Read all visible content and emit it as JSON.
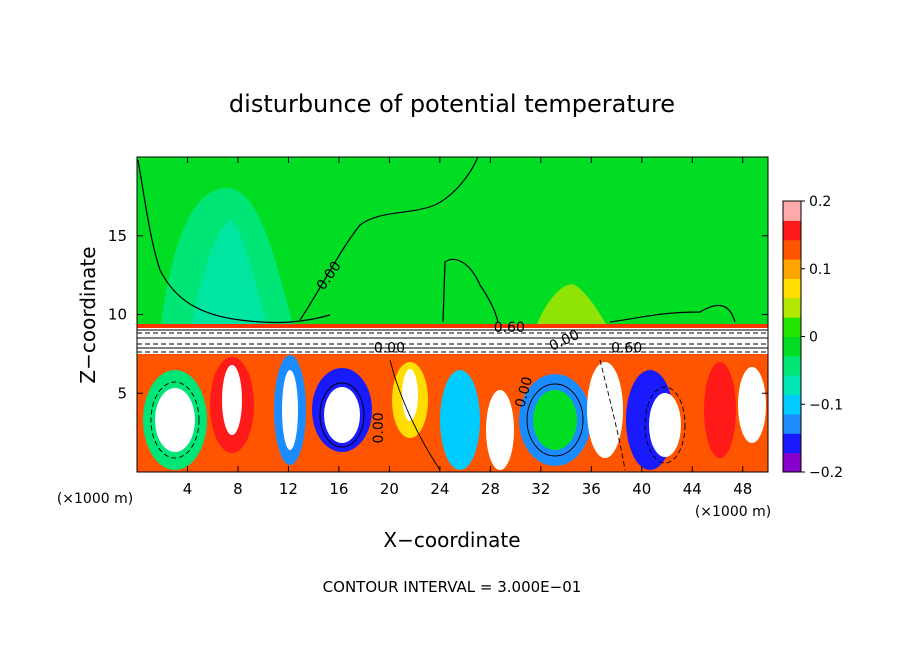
{
  "chart_data": {
    "type": "heatmap",
    "title": "disturbunce of potential temperature",
    "xlabel": "X−coordinate",
    "ylabel": "Z−coordinate",
    "x_unit": "(×1000 m)",
    "x_unit_right": "(×1000 m)",
    "footer": "CONTOUR INTERVAL = 3.000E−01",
    "xlim": [
      0,
      50
    ],
    "ylim": [
      0,
      20
    ],
    "x_ticks": [
      "4",
      "8",
      "12",
      "16",
      "20",
      "24",
      "28",
      "32",
      "36",
      "40",
      "44",
      "48"
    ],
    "x_tick_values": [
      4,
      8,
      12,
      16,
      20,
      24,
      28,
      32,
      36,
      40,
      44,
      48
    ],
    "y_ticks": [
      "5",
      "10",
      "15"
    ],
    "y_tick_values": [
      5,
      10,
      15
    ],
    "contour_labels": [
      {
        "text": "0.00",
        "x": 15.5,
        "z": 12.3,
        "angle": -55
      },
      {
        "text": "0.60",
        "x": 29.5,
        "z": 8.9,
        "angle": 0
      },
      {
        "text": "0.00",
        "x": 20.0,
        "z": 7.6,
        "angle": 0
      },
      {
        "text": "0.00",
        "x": 34.0,
        "z": 8.1,
        "angle": -25
      },
      {
        "text": "0.60",
        "x": 38.8,
        "z": 7.6,
        "angle": 0
      },
      {
        "text": "0.00",
        "x": 31.0,
        "z": 5.0,
        "angle": -75
      },
      {
        "text": "0.00",
        "x": 19.5,
        "z": 2.8,
        "angle": -90
      }
    ],
    "colorbar": {
      "min": -0.2,
      "max": 0.2,
      "tick_labels": [
        "0.2",
        "0.1",
        "0",
        "−0.1",
        "−0.2"
      ],
      "tick_values": [
        0.2,
        0.1,
        0,
        -0.1,
        -0.2
      ],
      "colors": [
        "#8800cc",
        "#1a1aff",
        "#1a8cff",
        "#00ccff",
        "#00e6b3",
        "#00e676",
        "#00dd22",
        "#22e600",
        "#b3e600",
        "#ffdd00",
        "#ffa500",
        "#ff5500",
        "#ff1a1a",
        "#ffaaaa"
      ]
    },
    "background_value": 0.0,
    "background_color": "#00dd22",
    "grid": false,
    "legend_position": "right"
  }
}
